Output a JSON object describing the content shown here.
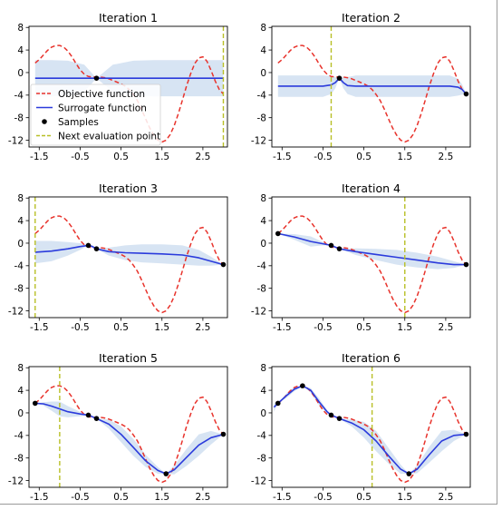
{
  "objective_color": "#e8332c",
  "surrogate_color": "#2b3bdc",
  "band_color": "#c9dbef",
  "sample_color": "#000000",
  "next_point_color": "#b8bf26",
  "chart_data": {
    "type": "line",
    "x_ticks": [
      "-1.5",
      "-0.5",
      "0.5",
      "1.5",
      "2.5"
    ],
    "y_ticks": [
      "8",
      "4",
      "0",
      "-4",
      "-8",
      "-12"
    ],
    "xlim": [
      -1.75,
      3.1
    ],
    "ylim": [
      -13.2,
      8.2
    ],
    "legend": {
      "placement": "lower-left",
      "entries": [
        "Objective function",
        "Surrogate function",
        "Samples",
        "Next evaluation point"
      ]
    },
    "objective": {
      "x": [
        -1.6,
        -1.5,
        -1.4,
        -1.3,
        -1.2,
        -1.1,
        -1.0,
        -0.9,
        -0.8,
        -0.7,
        -0.6,
        -0.5,
        -0.4,
        -0.3,
        -0.2,
        -0.1,
        0.0,
        0.1,
        0.2,
        0.3,
        0.4,
        0.5,
        0.6,
        0.7,
        0.8,
        0.9,
        1.0,
        1.1,
        1.2,
        1.3,
        1.4,
        1.5,
        1.6,
        1.7,
        1.8,
        1.9,
        2.0,
        2.1,
        2.2,
        2.3,
        2.4,
        2.5,
        2.6,
        2.7,
        2.8,
        2.9,
        3.0
      ],
      "y": [
        1.7,
        2.3,
        3.1,
        3.9,
        4.5,
        4.8,
        4.8,
        4.5,
        3.8,
        2.8,
        1.6,
        0.5,
        -0.3,
        -0.7,
        -0.8,
        -0.8,
        -0.8,
        -0.9,
        -1.1,
        -1.4,
        -1.7,
        -2.0,
        -2.4,
        -3.0,
        -3.9,
        -5.0,
        -6.5,
        -8.2,
        -9.8,
        -11.1,
        -12.0,
        -12.3,
        -12.0,
        -11.0,
        -9.4,
        -7.3,
        -4.9,
        -2.4,
        -0.2,
        1.6,
        2.6,
        2.8,
        2.0,
        0.4,
        -1.5,
        -3.0,
        -3.8
      ]
    },
    "panels": [
      {
        "title": "Iteration 1",
        "show_legend": true,
        "samples": [
          [
            -0.1,
            -1.0
          ]
        ],
        "next_point": 3.0,
        "surrogate": {
          "x": [
            -1.6,
            -1.2,
            -0.8,
            -0.4,
            -0.1,
            0.3,
            0.8,
            1.3,
            1.8,
            2.3,
            2.7,
            3.0
          ],
          "y": [
            -1.0,
            -1.0,
            -1.0,
            -1.0,
            -1.0,
            -1.0,
            -1.0,
            -1.0,
            -1.0,
            -1.0,
            -1.0,
            -1.0
          ],
          "lower": [
            -4.2,
            -4.2,
            -4.1,
            -3.4,
            -1.0,
            -3.4,
            -4.1,
            -4.2,
            -4.2,
            -4.2,
            -4.2,
            -4.2
          ],
          "upper": [
            2.2,
            2.2,
            2.1,
            1.4,
            -1.0,
            1.4,
            2.1,
            2.2,
            2.2,
            2.2,
            2.2,
            2.2
          ]
        }
      },
      {
        "title": "Iteration 2",
        "show_legend": false,
        "samples": [
          [
            -0.1,
            -1.0
          ],
          [
            3.0,
            -3.8
          ]
        ],
        "next_point": -0.3,
        "surrogate": {
          "x": [
            -1.6,
            -1.0,
            -0.5,
            -0.3,
            -0.2,
            -0.1,
            0.0,
            0.1,
            0.3,
            0.8,
            1.5,
            2.2,
            2.6,
            2.8,
            2.9,
            3.0
          ],
          "y": [
            -2.4,
            -2.4,
            -2.4,
            -2.2,
            -1.8,
            -1.0,
            -1.8,
            -2.3,
            -2.4,
            -2.4,
            -2.4,
            -2.4,
            -2.4,
            -2.6,
            -3.0,
            -3.8
          ],
          "lower": [
            -4.3,
            -4.3,
            -4.3,
            -3.8,
            -2.8,
            -1.0,
            -2.8,
            -3.8,
            -4.3,
            -4.3,
            -4.3,
            -4.3,
            -4.3,
            -4.1,
            -3.9,
            -3.8
          ],
          "upper": [
            -0.5,
            -0.5,
            -0.5,
            -0.6,
            -0.8,
            -1.0,
            -0.8,
            -0.8,
            -0.5,
            -0.5,
            -0.5,
            -0.5,
            -0.5,
            -1.1,
            -2.1,
            -3.8
          ]
        }
      },
      {
        "title": "Iteration 3",
        "show_legend": false,
        "samples": [
          [
            -0.3,
            -0.4
          ],
          [
            -0.1,
            -1.0
          ],
          [
            3.0,
            -3.8
          ]
        ],
        "next_point": -1.6,
        "surrogate": {
          "x": [
            -1.6,
            -1.2,
            -0.8,
            -0.5,
            -0.3,
            -0.2,
            -0.1,
            0.2,
            0.6,
            1.0,
            1.5,
            2.0,
            2.4,
            2.7,
            3.0
          ],
          "y": [
            -1.6,
            -1.4,
            -1.0,
            -0.6,
            -0.4,
            -0.6,
            -1.0,
            -1.5,
            -1.7,
            -1.8,
            -1.9,
            -2.1,
            -2.6,
            -3.2,
            -3.8
          ],
          "lower": [
            -3.6,
            -3.2,
            -2.2,
            -1.2,
            -0.4,
            -0.8,
            -1.0,
            -2.2,
            -3.0,
            -3.4,
            -3.6,
            -3.8,
            -4.0,
            -4.0,
            -3.8
          ],
          "upper": [
            0.4,
            0.4,
            0.2,
            0.0,
            -0.4,
            -0.4,
            -1.0,
            -0.8,
            -0.4,
            -0.2,
            -0.2,
            -0.4,
            -1.2,
            -2.4,
            -3.8
          ]
        }
      },
      {
        "title": "Iteration 4",
        "show_legend": false,
        "samples": [
          [
            -1.6,
            1.7
          ],
          [
            -0.3,
            -0.4
          ],
          [
            -0.1,
            -1.0
          ],
          [
            3.0,
            -3.8
          ]
        ],
        "next_point": 1.5,
        "surrogate": {
          "x": [
            -1.6,
            -1.2,
            -0.8,
            -0.5,
            -0.3,
            -0.1,
            0.3,
            0.8,
            1.3,
            1.8,
            2.3,
            2.7,
            3.0
          ],
          "y": [
            1.7,
            1.1,
            0.3,
            -0.1,
            -0.4,
            -1.0,
            -1.5,
            -2.0,
            -2.5,
            -3.0,
            -3.5,
            -3.8,
            -3.8
          ],
          "lower": [
            1.7,
            0.6,
            -0.6,
            -0.4,
            -0.4,
            -1.0,
            -2.1,
            -3.0,
            -3.8,
            -4.3,
            -4.6,
            -4.4,
            -3.8
          ],
          "upper": [
            1.7,
            1.6,
            1.2,
            0.2,
            -0.4,
            -1.0,
            -0.9,
            -1.0,
            -1.2,
            -1.7,
            -2.4,
            -3.2,
            -3.8
          ]
        }
      },
      {
        "title": "Iteration 5",
        "show_legend": false,
        "samples": [
          [
            -1.6,
            1.7
          ],
          [
            -0.3,
            -0.4
          ],
          [
            -0.1,
            -1.0
          ],
          [
            1.6,
            -10.8
          ],
          [
            3.0,
            -3.8
          ]
        ],
        "next_point": -1.0,
        "surrogate": {
          "x": [
            -1.6,
            -1.4,
            -1.2,
            -1.0,
            -0.8,
            -0.5,
            -0.3,
            -0.1,
            0.2,
            0.5,
            0.8,
            1.1,
            1.4,
            1.6,
            1.8,
            2.1,
            2.4,
            2.7,
            3.0
          ],
          "y": [
            1.7,
            1.6,
            1.2,
            0.7,
            0.2,
            -0.2,
            -0.4,
            -1.0,
            -2.0,
            -3.8,
            -6.1,
            -8.5,
            -10.2,
            -10.8,
            -10.1,
            -7.9,
            -5.7,
            -4.4,
            -3.8
          ],
          "lower": [
            1.7,
            1.3,
            0.4,
            -0.6,
            -0.8,
            -0.6,
            -0.4,
            -1.0,
            -2.8,
            -5.2,
            -7.6,
            -9.6,
            -10.8,
            -10.8,
            -10.9,
            -9.4,
            -7.6,
            -5.6,
            -3.8
          ],
          "upper": [
            1.7,
            1.9,
            2.0,
            2.0,
            1.2,
            0.2,
            -0.4,
            -1.0,
            -1.2,
            -2.4,
            -4.6,
            -7.4,
            -9.6,
            -10.8,
            -9.3,
            -6.4,
            -3.8,
            -3.2,
            -3.8
          ]
        }
      },
      {
        "title": "Iteration 6",
        "show_legend": false,
        "samples": [
          [
            -1.6,
            1.7
          ],
          [
            -1.0,
            4.8
          ],
          [
            -0.3,
            -0.4
          ],
          [
            -0.1,
            -1.0
          ],
          [
            1.6,
            -10.8
          ],
          [
            3.0,
            -3.8
          ]
        ],
        "next_point": 0.7,
        "surrogate": {
          "x": [
            -1.7,
            -1.6,
            -1.4,
            -1.2,
            -1.0,
            -0.8,
            -0.6,
            -0.4,
            -0.3,
            -0.1,
            0.2,
            0.5,
            0.8,
            1.1,
            1.4,
            1.6,
            1.8,
            2.1,
            2.4,
            2.7,
            3.0
          ],
          "y": [
            1.0,
            1.7,
            3.0,
            4.2,
            4.8,
            4.0,
            2.0,
            0.2,
            -0.4,
            -1.0,
            -1.8,
            -3.0,
            -5.0,
            -7.6,
            -10.0,
            -10.8,
            -10.0,
            -7.4,
            -5.0,
            -4.0,
            -3.8
          ],
          "lower": [
            0.2,
            1.7,
            2.6,
            3.8,
            4.8,
            3.6,
            1.4,
            -0.1,
            -0.4,
            -1.0,
            -2.4,
            -4.4,
            -6.8,
            -9.0,
            -10.8,
            -10.8,
            -10.7,
            -8.8,
            -6.8,
            -5.0,
            -3.8
          ],
          "upper": [
            1.8,
            1.7,
            3.4,
            4.6,
            4.8,
            4.4,
            2.6,
            0.5,
            -0.4,
            -1.0,
            -1.2,
            -1.6,
            -3.2,
            -6.2,
            -9.2,
            -10.8,
            -9.3,
            -6.0,
            -3.2,
            -3.0,
            -3.8
          ]
        }
      }
    ]
  }
}
